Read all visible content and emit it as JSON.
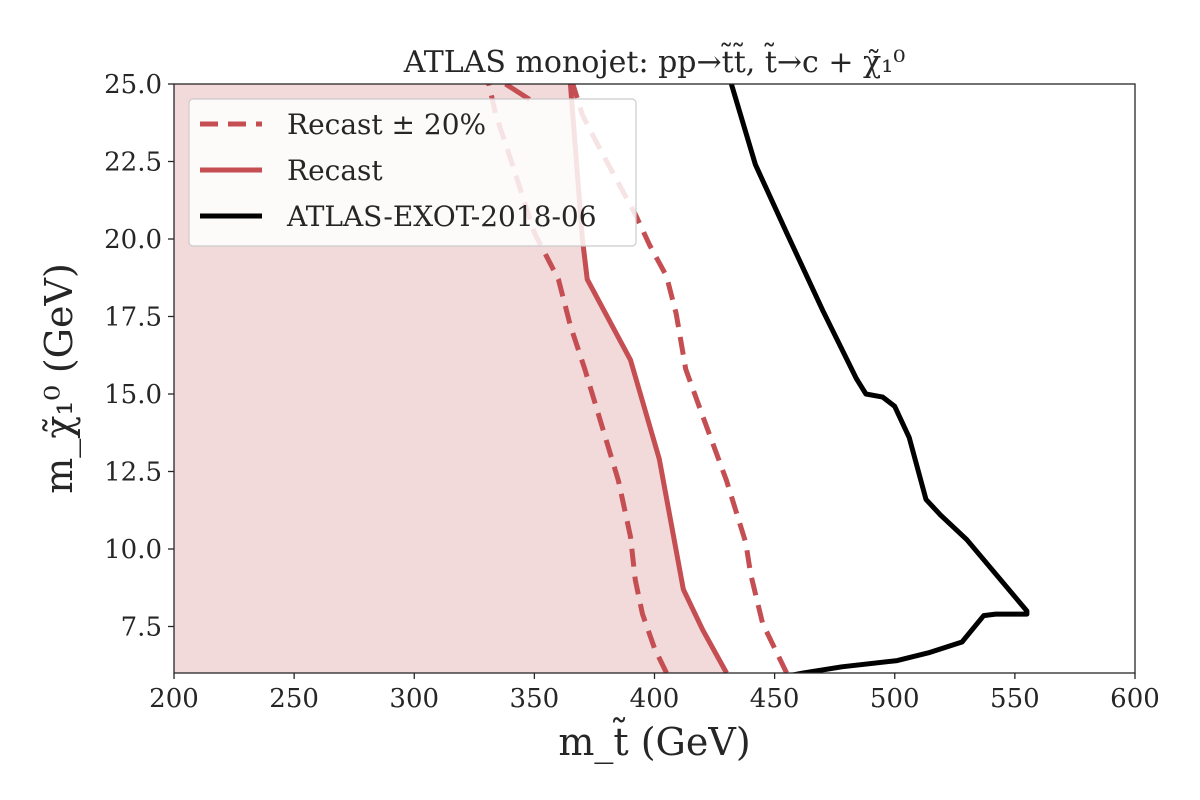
{
  "chart_data": {
    "type": "line",
    "title": "ATLAS monojet: pp→t̃t̃, t̃→c + χ̃₁⁰",
    "xlabel": "m_t̃ (GeV)",
    "ylabel": "m_χ̃₁⁰ (GeV)",
    "xlim": [
      200,
      600
    ],
    "ylim": [
      6.0,
      25.0
    ],
    "xticks": [
      "200",
      "250",
      "300",
      "350",
      "400",
      "450",
      "500",
      "550",
      "600"
    ],
    "yticks": [
      "7.5",
      "10.0",
      "12.5",
      "15.0",
      "17.5",
      "20.0",
      "22.5",
      "25.0"
    ],
    "xtick_values": [
      200,
      250,
      300,
      350,
      400,
      450,
      500,
      550,
      600
    ],
    "ytick_values": [
      7.5,
      10.0,
      12.5,
      15.0,
      17.5,
      20.0,
      22.5,
      25.0
    ],
    "grid": false,
    "legend_position": "top-left",
    "colors": {
      "recast": "#c44e52",
      "atlas": "#000000",
      "fill": "#f2d9da"
    },
    "series": [
      {
        "name": "Recast ± 20%",
        "style": "dashed",
        "color": "#c44e52",
        "segments": [
          [
            [
              405,
              6.0
            ],
            [
              400,
              6.8
            ],
            [
              395,
              7.9
            ],
            [
              392,
              9.0
            ],
            [
              390,
              10.4
            ],
            [
              385,
              12.2
            ],
            [
              378,
              14.0
            ],
            [
              371,
              15.8
            ],
            [
              365,
              17.2
            ],
            [
              360,
              18.7
            ],
            [
              350,
              20.2
            ],
            [
              345,
              21.4
            ],
            [
              340,
              22.6
            ],
            [
              334,
              24.0
            ],
            [
              331,
              25.0
            ]
          ],
          [
            [
              455,
              6.0
            ],
            [
              445,
              7.6
            ],
            [
              440,
              9.2
            ],
            [
              438,
              10.2
            ],
            [
              430,
              12.2
            ],
            [
              420,
              14.3
            ],
            [
              413,
              15.8
            ],
            [
              409,
              17.6
            ],
            [
              405,
              18.8
            ],
            [
              398,
              19.8
            ],
            [
              392,
              20.8
            ],
            [
              385,
              21.8
            ],
            [
              378,
              22.8
            ],
            [
              370,
              24.0
            ],
            [
              366,
              25.0
            ]
          ]
        ]
      },
      {
        "name": "Recast",
        "style": "solid",
        "color": "#c44e52",
        "segments": [
          [
            [
              430,
              6.0
            ],
            [
              420,
              7.4
            ],
            [
              412,
              8.7
            ],
            [
              402,
              12.9
            ],
            [
              390,
              16.1
            ],
            [
              372,
              18.7
            ],
            [
              370,
              20.0
            ],
            [
              368,
              22.0
            ],
            [
              366,
              24.0
            ],
            [
              365,
              25.0
            ]
          ],
          [
            [
              338,
              25.0
            ],
            [
              348,
              24.5
            ]
          ]
        ]
      },
      {
        "name": "ATLAS-EXOT-2018-06",
        "style": "solid",
        "color": "#000000",
        "segments": [
          [
            [
              455,
              5.9
            ],
            [
              462,
              6.0
            ],
            [
              478,
              6.2
            ],
            [
              501,
              6.4
            ],
            [
              514,
              6.65
            ],
            [
              528,
              7.0
            ],
            [
              537,
              7.85
            ],
            [
              542,
              7.9
            ],
            [
              555,
              7.9
            ],
            [
              555,
              8.0
            ],
            [
              530,
              10.3
            ],
            [
              519,
              11.1
            ],
            [
              513,
              11.6
            ],
            [
              506,
              13.6
            ],
            [
              500,
              14.6
            ],
            [
              495,
              14.9
            ],
            [
              488,
              15.0
            ],
            [
              484,
              15.5
            ],
            [
              470,
              17.7
            ],
            [
              455,
              20.2
            ],
            [
              442,
              22.4
            ],
            [
              432,
              25.0
            ]
          ]
        ]
      }
    ],
    "shaded_region": {
      "label": "",
      "boundary": [
        [
          430,
          6.0
        ],
        [
          420,
          7.4
        ],
        [
          412,
          8.7
        ],
        [
          402,
          12.9
        ],
        [
          390,
          16.1
        ],
        [
          372,
          18.7
        ],
        [
          370,
          20.0
        ],
        [
          368,
          22.0
        ],
        [
          366,
          24.0
        ],
        [
          365,
          25.0
        ]
      ]
    }
  }
}
